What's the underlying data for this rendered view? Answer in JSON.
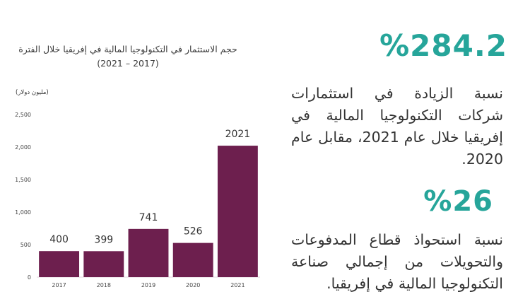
{
  "chart_data": {
    "type": "bar",
    "title": "حجم الاستثمار في التكنولوجيا المالية في إفريقيا خلال الفترة (2017 – 2021)",
    "unit_label": "(مليون دولار)",
    "categories": [
      "2017",
      "2018",
      "2019",
      "2020",
      "2021"
    ],
    "values": [
      400,
      399,
      741,
      526,
      2021
    ],
    "data_labels": [
      "400",
      "399",
      "741",
      "526",
      "2021"
    ],
    "y_ticks": [
      "0",
      "500",
      "1,000",
      "1,500",
      "2,000",
      "2,500"
    ],
    "ylim": [
      0,
      2500
    ],
    "grid": false,
    "bar_color": "#6d1f4e"
  },
  "stats": [
    {
      "value": "%284.2",
      "description": "نسبة الزيادة في استثمارات شركات التكنولوجيا المالية في إفريقيا خلال عام 2021، مقابل عام 2020."
    },
    {
      "value": "%26",
      "description": "نسبة استحواذ قطاع المدفوعات والتحويلات من إجمالي صناعة التكنولوجيا المالية في إفريقيا."
    }
  ],
  "accent_color": "#26a59a"
}
